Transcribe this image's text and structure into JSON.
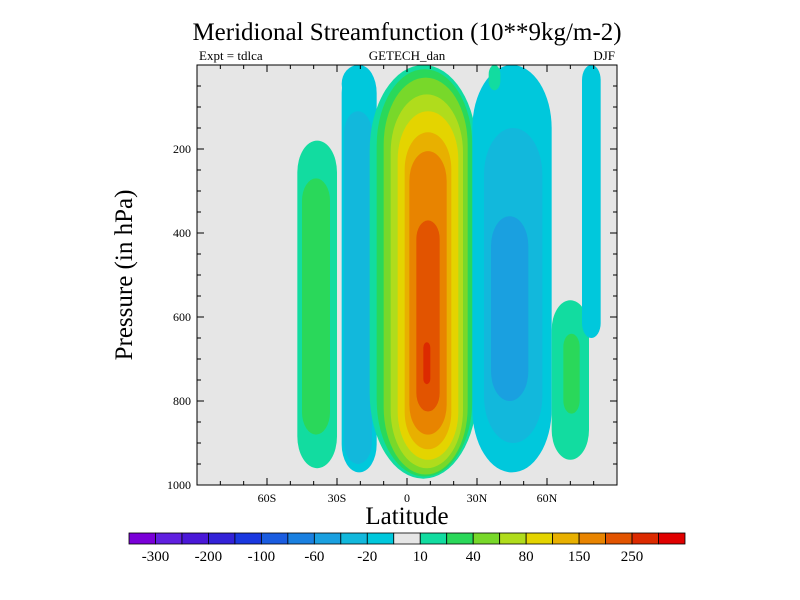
{
  "chart_data": {
    "type": "filled-contour",
    "title": "Meridional Streamfunction (10**9kg/m-2)",
    "left_string": "Expt = tdlca",
    "center_string": "GETECH_dan",
    "right_string": "DJF",
    "xlabel": "Latitude",
    "ylabel": "Pressure (in hPa)",
    "xlim": [
      -90,
      90
    ],
    "ylim": [
      1000,
      0
    ],
    "x_ticks": [
      {
        "value": -60,
        "label": "60S"
      },
      {
        "value": -30,
        "label": "30S"
      },
      {
        "value": 0,
        "label": "0"
      },
      {
        "value": 30,
        "label": "30N"
      },
      {
        "value": 60,
        "label": "60N"
      }
    ],
    "y_ticks": [
      {
        "value": 200,
        "label": "200"
      },
      {
        "value": 400,
        "label": "400"
      },
      {
        "value": 600,
        "label": "600"
      },
      {
        "value": 800,
        "label": "800"
      },
      {
        "value": 1000,
        "label": "1000"
      }
    ],
    "contour_levels": [
      -300,
      -250,
      -200,
      -150,
      -100,
      -80,
      -60,
      -40,
      -20,
      -10,
      10,
      20,
      40,
      60,
      80,
      100,
      150,
      200,
      250,
      300
    ],
    "colorbar": {
      "colors": [
        "#7a00d8",
        "#6020e0",
        "#4a18d8",
        "#3322d8",
        "#1a38e0",
        "#1a5ce0",
        "#1a80e0",
        "#1aa0e0",
        "#12b8dc",
        "#00c8dc",
        "#e6e6e6",
        "#12dca0",
        "#2ad85a",
        "#78d82a",
        "#b0dc1c",
        "#e4d400",
        "#e8b000",
        "#e88400",
        "#e25400",
        "#dc2a00",
        "#e00000"
      ],
      "labels": [
        {
          "after_box": 1,
          "text": "-300"
        },
        {
          "after_box": 3,
          "text": "-200"
        },
        {
          "after_box": 5,
          "text": "-100"
        },
        {
          "after_box": 7,
          "text": "-60"
        },
        {
          "after_box": 9,
          "text": "-20"
        },
        {
          "after_box": 11,
          "text": "10"
        },
        {
          "after_box": 13,
          "text": "40"
        },
        {
          "after_box": 15,
          "text": "80"
        },
        {
          "after_box": 17,
          "text": "150"
        },
        {
          "after_box": 19,
          "text": "250"
        }
      ]
    },
    "background_color": "#e6e6e6",
    "cells": [
      {
        "lat": [
          -62,
          -57
        ],
        "p": [
          355,
          870
        ],
        "level": 10,
        "name": "cell-60s-weak-negative"
      },
      {
        "lat": [
          -47,
          -30
        ],
        "p": [
          180,
          960
        ],
        "level": 11,
        "name": "cell-45s-positive-outer"
      },
      {
        "lat": [
          -45,
          -33
        ],
        "p": [
          270,
          880
        ],
        "level": 12,
        "name": "cell-45s-positive-inner"
      },
      {
        "lat": [
          -28,
          -13
        ],
        "p": [
          0,
          970
        ],
        "level": 9,
        "name": "cell-20s-negative-outer"
      },
      {
        "lat": [
          -27,
          -15
        ],
        "p": [
          110,
          950
        ],
        "level": 8,
        "name": "cell-20s-negative-inner"
      },
      {
        "lat": [
          -16,
          30
        ],
        "p": [
          0,
          985
        ],
        "level": 11,
        "name": "hadley-cell-l10"
      },
      {
        "lat": [
          -13,
          28
        ],
        "p": [
          10,
          980
        ],
        "level": 12,
        "name": "hadley-cell-l20"
      },
      {
        "lat": [
          -10,
          26
        ],
        "p": [
          30,
          975
        ],
        "level": 13,
        "name": "hadley-cell-l40"
      },
      {
        "lat": [
          -7,
          24
        ],
        "p": [
          70,
          960
        ],
        "level": 14,
        "name": "hadley-cell-l60"
      },
      {
        "lat": [
          -4,
          22
        ],
        "p": [
          110,
          940
        ],
        "level": 15,
        "name": "hadley-cell-l80"
      },
      {
        "lat": [
          -1,
          19
        ],
        "p": [
          160,
          915
        ],
        "level": 16,
        "name": "hadley-cell-l100"
      },
      {
        "lat": [
          1,
          17
        ],
        "p": [
          205,
          880
        ],
        "level": 17,
        "name": "hadley-cell-l150"
      },
      {
        "lat": [
          4,
          14
        ],
        "p": [
          370,
          825
        ],
        "level": 18,
        "name": "hadley-cell-l200"
      },
      {
        "lat": [
          7,
          10
        ],
        "p": [
          660,
          760
        ],
        "level": 19,
        "name": "hadley-cell-l250"
      },
      {
        "lat": [
          -28,
          -14
        ],
        "p": [
          0,
          90
        ],
        "level": 9,
        "name": "cell-top-sh-negative"
      },
      {
        "lat": [
          28,
          62
        ],
        "p": [
          0,
          970
        ],
        "level": 9,
        "name": "ferrel-cell-nh-outer"
      },
      {
        "lat": [
          33,
          58
        ],
        "p": [
          150,
          900
        ],
        "level": 8,
        "name": "ferrel-cell-nh-mid"
      },
      {
        "lat": [
          36,
          52
        ],
        "p": [
          360,
          800
        ],
        "level": 7,
        "name": "ferrel-cell-nh-inner"
      },
      {
        "lat": [
          35,
          40
        ],
        "p": [
          0,
          60
        ],
        "level": 11,
        "name": "cell-top-nh-positive"
      },
      {
        "lat": [
          62,
          78
        ],
        "p": [
          560,
          940
        ],
        "level": 11,
        "name": "polar-cell-nh-positive"
      },
      {
        "lat": [
          67,
          74
        ],
        "p": [
          640,
          830
        ],
        "level": 12,
        "name": "polar-cell-nh-inner"
      },
      {
        "lat": [
          75,
          83
        ],
        "p": [
          0,
          650
        ],
        "level": 9,
        "name": "polar-cell-nh-negative"
      }
    ]
  }
}
